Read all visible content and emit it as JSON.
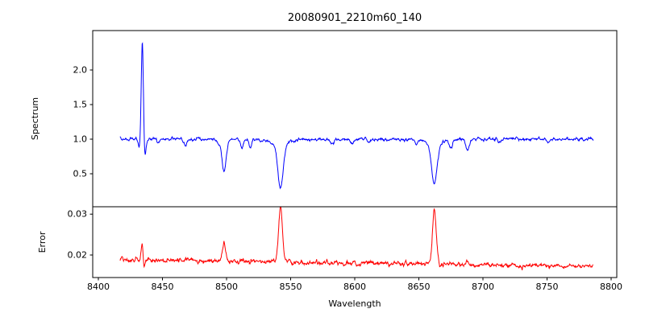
{
  "figure": {
    "background": "#ffffff",
    "axis_color": "#000000"
  },
  "chart_data": {
    "type": "line",
    "title": "20080901_2210m60_140",
    "xlabel": "Wavelength",
    "grid": false,
    "legend": "none",
    "xlim": [
      8395.6,
      8804.4
    ],
    "xticks": [
      {
        "v": 8400,
        "label": "8400"
      },
      {
        "v": 8450,
        "label": "8450"
      },
      {
        "v": 8500,
        "label": "8500"
      },
      {
        "v": 8550,
        "label": "8550"
      },
      {
        "v": 8600,
        "label": "8600"
      },
      {
        "v": 8650,
        "label": "8650"
      },
      {
        "v": 8700,
        "label": "8700"
      },
      {
        "v": 8750,
        "label": "8750"
      },
      {
        "v": 8800,
        "label": "8800"
      }
    ],
    "panels": [
      {
        "id": "spectrum",
        "ylabel": "Spectrum",
        "color": "#0000ff",
        "ylim": [
          0.023,
          2.57
        ],
        "yticks": [
          {
            "v": 0.5,
            "label": "0.5"
          },
          {
            "v": 1.0,
            "label": "1.0"
          },
          {
            "v": 1.5,
            "label": "1.5"
          },
          {
            "v": 2.0,
            "label": "2.0"
          }
        ],
        "description": "Normalized spectrum: continuum at 1.0, strong narrow emission spike at 8434 reaching about 2.4, Ca II triplet absorption lines at 8498 (depth to ~0.54), 8542 (to ~0.28) and 8662 (to ~0.36), plus weaker lines at 8468, 8512, 8518, 8675, 8688",
        "model": {
          "x_start": 8417,
          "x_end": 8786,
          "n": 1400,
          "continuum": 1.0,
          "slope": 0,
          "noise_sigma": 0.012,
          "noise_fine": 0.0045,
          "noise_seed": 7,
          "noise_coarse_n": 420,
          "emission": [
            {
              "center": 8434.3,
              "height": 1.42,
              "width": 0.8
            }
          ],
          "absorption": [
            {
              "center": 8431.8,
              "depth": 0.13,
              "width": 0.7
            },
            {
              "center": 8436.3,
              "depth": 0.25,
              "width": 0.9
            },
            {
              "center": 8447.0,
              "depth": 0.05,
              "width": 1.0
            },
            {
              "center": 8468.0,
              "depth": 0.1,
              "width": 1.1
            },
            {
              "center": 8493.0,
              "depth": 0.05,
              "width": 1.0
            },
            {
              "center": 8498.0,
              "depth": 0.46,
              "width": 1.7
            },
            {
              "center": 8512.0,
              "depth": 0.13,
              "width": 1.0
            },
            {
              "center": 8518.5,
              "depth": 0.12,
              "width": 1.0
            },
            {
              "center": 8527.0,
              "depth": 0.05,
              "width": 1.0
            },
            {
              "center": 8542.1,
              "depth": 0.62,
              "width": 2.0
            },
            {
              "center": 8542.1,
              "depth": 0.1,
              "width": 5.5
            },
            {
              "center": 8582.0,
              "depth": 0.06,
              "width": 1.3
            },
            {
              "center": 8598.0,
              "depth": 0.07,
              "width": 1.2
            },
            {
              "center": 8611.0,
              "depth": 0.04,
              "width": 1.0
            },
            {
              "center": 8648.0,
              "depth": 0.07,
              "width": 1.2
            },
            {
              "center": 8662.1,
              "depth": 0.55,
              "width": 2.1
            },
            {
              "center": 8662.1,
              "depth": 0.09,
              "width": 5.5
            },
            {
              "center": 8675.0,
              "depth": 0.12,
              "width": 1.2
            },
            {
              "center": 8688.0,
              "depth": 0.16,
              "width": 1.4
            },
            {
              "center": 8713.0,
              "depth": 0.05,
              "width": 1.0
            },
            {
              "center": 8751.0,
              "depth": 0.05,
              "width": 1.0
            }
          ]
        }
      },
      {
        "id": "error",
        "ylabel": "Error",
        "color": "#ff0000",
        "ylim": [
          0.0145,
          0.0318
        ],
        "yticks": [
          {
            "v": 0.02,
            "label": "0.02"
          },
          {
            "v": 0.03,
            "label": "0.03"
          }
        ],
        "description": "Error spectrum: baseline ~0.019 declining to ~0.017, sharp spike near 8434 (~0.023), peaks at the absorption lines: 8498 (~0.022), 8542 (~0.031), 8662 (~0.031)",
        "model": {
          "x_start": 8417,
          "x_end": 8786,
          "n": 1400,
          "continuum": 0.0188,
          "slope": -4.3e-06,
          "noise_sigma": 0.00032,
          "noise_fine": 0.00012,
          "noise_seed": 13,
          "noise_coarse_n": 420,
          "emission": [
            {
              "center": 8434.0,
              "height": 0.0044,
              "width": 0.7
            },
            {
              "center": 8498.0,
              "height": 0.0042,
              "width": 1.3
            },
            {
              "center": 8512.0,
              "height": 0.0007,
              "width": 1.0
            },
            {
              "center": 8542.1,
              "height": 0.0134,
              "width": 1.5
            },
            {
              "center": 8662.1,
              "height": 0.0133,
              "width": 1.5
            },
            {
              "center": 8688.0,
              "height": 0.0009,
              "width": 1.2
            }
          ],
          "absorption": [
            {
              "center": 8435.6,
              "depth": 0.002,
              "width": 0.6
            }
          ]
        }
      }
    ]
  }
}
